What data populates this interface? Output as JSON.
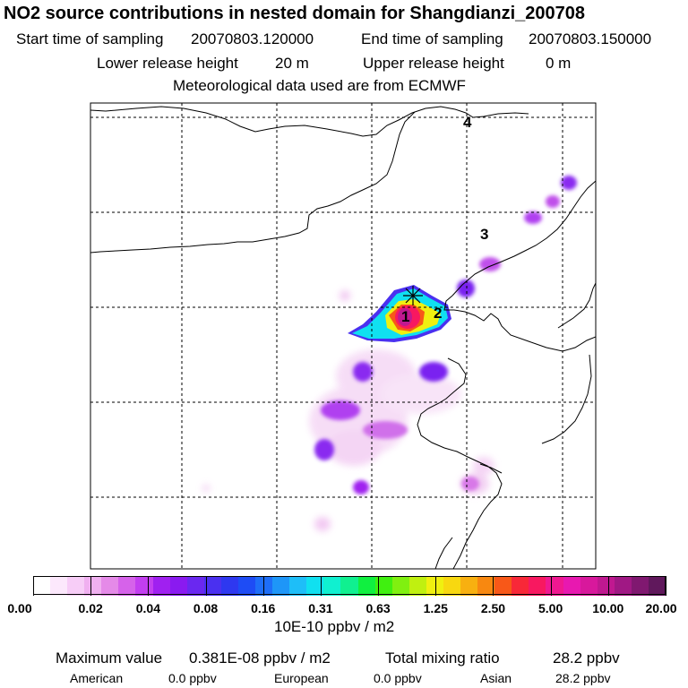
{
  "title": "NO2 source contributions in nested domain for Shangdianzi_200708",
  "sampling": {
    "start_label": "Start time of sampling",
    "start_value": "20070803.120000",
    "end_label": "End time of sampling",
    "end_value": "20070803.150000"
  },
  "release": {
    "lower_label": "Lower release height",
    "lower_value": "20 m",
    "upper_label": "Upper release height",
    "upper_value": "0 m"
  },
  "met_line": "Meteorological data used are from ECMWF",
  "region_labels": [
    "1",
    "2",
    "3",
    "4"
  ],
  "station_marker": "star-icon",
  "colorbar": {
    "colors": [
      "#ffffff",
      "#fce8fc",
      "#f7cdf7",
      "#f0b0f0",
      "#e58ae8",
      "#d662ea",
      "#c33ef0",
      "#a020f0",
      "#8a1af0",
      "#6a28f0",
      "#4a30f0",
      "#2e38f0",
      "#1e4cf5",
      "#1e6ef8",
      "#1e96f8",
      "#1ebef8",
      "#10e0f0",
      "#10f0d0",
      "#10f090",
      "#10f040",
      "#40f010",
      "#80f010",
      "#c0f010",
      "#f0f010",
      "#f8d810",
      "#f8b010",
      "#f88810",
      "#f85818",
      "#f82838",
      "#f81860",
      "#f01890",
      "#e818b0",
      "#d8189c",
      "#c01890",
      "#a01884",
      "#801870",
      "#60185c"
    ],
    "ticks": [
      "0.00",
      "0.02",
      "0.04",
      "0.08",
      "0.16",
      "0.31",
      "0.63",
      "1.25",
      "2.50",
      "5.00",
      "10.00",
      "20.00"
    ],
    "unit_label": "10E-10 ppbv / m2"
  },
  "summary": {
    "max_label": "Maximum value",
    "max_value": "0.381E-08 ppbv / m2",
    "total_label": "Total mixing ratio",
    "total_value": "28.2 ppbv"
  },
  "breakdown": [
    {
      "label": "American",
      "value": "0.0 ppbv"
    },
    {
      "label": "European",
      "value": "0.0 ppbv"
    },
    {
      "label": "Asian",
      "value": "28.2 ppbv"
    }
  ]
}
